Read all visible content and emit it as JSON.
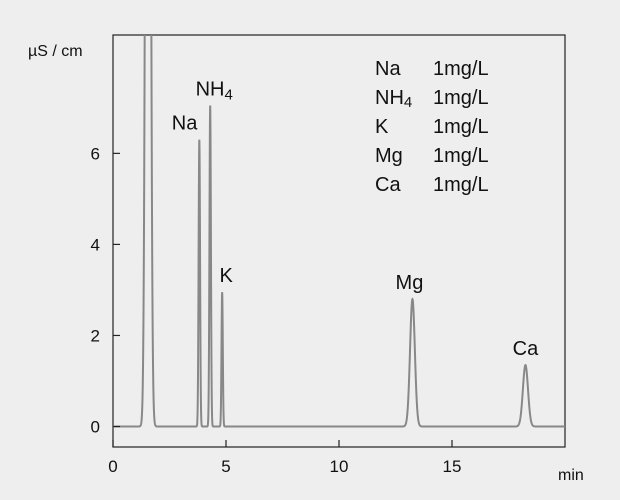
{
  "chart_data": {
    "type": "line",
    "title": "",
    "xlabel": "min",
    "ylabel": "µS / cm",
    "xlim": [
      0,
      20
    ],
    "ylim": [
      -0.45,
      8.6
    ],
    "x_ticks": [
      0,
      5,
      10,
      15
    ],
    "y_ticks": [
      0,
      2,
      4,
      6
    ],
    "grid": false,
    "legend_position": "top-right",
    "legend": [
      {
        "ion": "Na",
        "conc": "1mg/L"
      },
      {
        "ion": "NH4",
        "conc": "1mg/L"
      },
      {
        "ion": "K",
        "conc": "1mg/L"
      },
      {
        "ion": "Mg",
        "conc": "1mg/L"
      },
      {
        "ion": "Ca",
        "conc": "1mg/L"
      }
    ],
    "baseline": 0.0,
    "system_peak": {
      "x": 1.55,
      "width": 0.12,
      "label": ""
    },
    "peaks": [
      {
        "name": "Na",
        "x": 3.82,
        "height": 6.3,
        "width": 0.045
      },
      {
        "name": "NH4",
        "x": 4.3,
        "height": 7.05,
        "width": 0.045
      },
      {
        "name": "K",
        "x": 4.83,
        "height": 2.95,
        "width": 0.04
      },
      {
        "name": "Mg",
        "x": 13.25,
        "height": 2.8,
        "width": 0.15
      },
      {
        "name": "Ca",
        "x": 18.25,
        "height": 1.35,
        "width": 0.16
      }
    ],
    "line_color": "#888888"
  }
}
